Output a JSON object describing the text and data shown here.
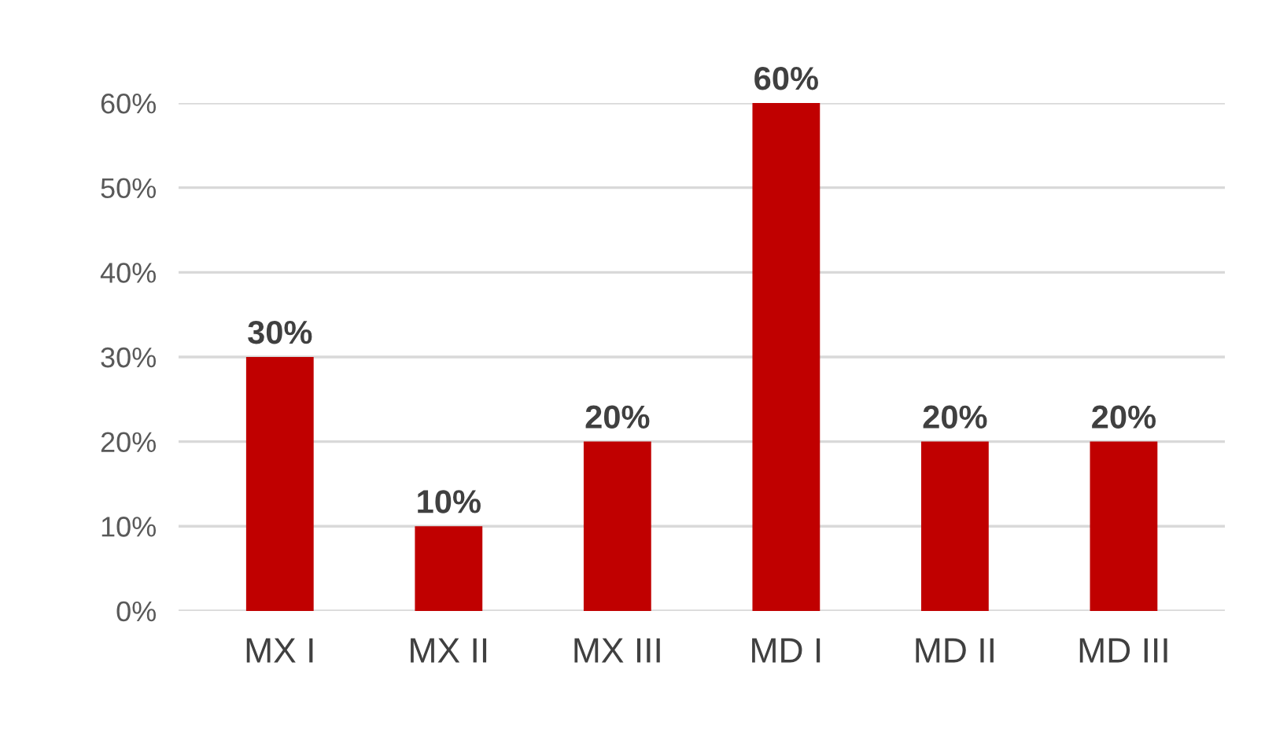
{
  "chart_data": {
    "type": "bar",
    "categories": [
      "MX I",
      "MX II",
      "MX III",
      "MD I",
      "MD II",
      "MD III"
    ],
    "values": [
      30,
      10,
      20,
      60,
      20,
      20
    ],
    "value_labels": [
      "30%",
      "10%",
      "20%",
      "60%",
      "20%",
      "20%"
    ],
    "color": "#c00000",
    "ylim": [
      0,
      60
    ],
    "yticks": [
      {
        "value": 0,
        "label": "0%"
      },
      {
        "value": 10,
        "label": "10%"
      },
      {
        "value": 20,
        "label": "20%"
      },
      {
        "value": 30,
        "label": "30%"
      },
      {
        "value": 40,
        "label": "40%"
      },
      {
        "value": 50,
        "label": "50%"
      },
      {
        "value": 60,
        "label": "60%"
      }
    ],
    "grid": "y",
    "legend": false
  }
}
